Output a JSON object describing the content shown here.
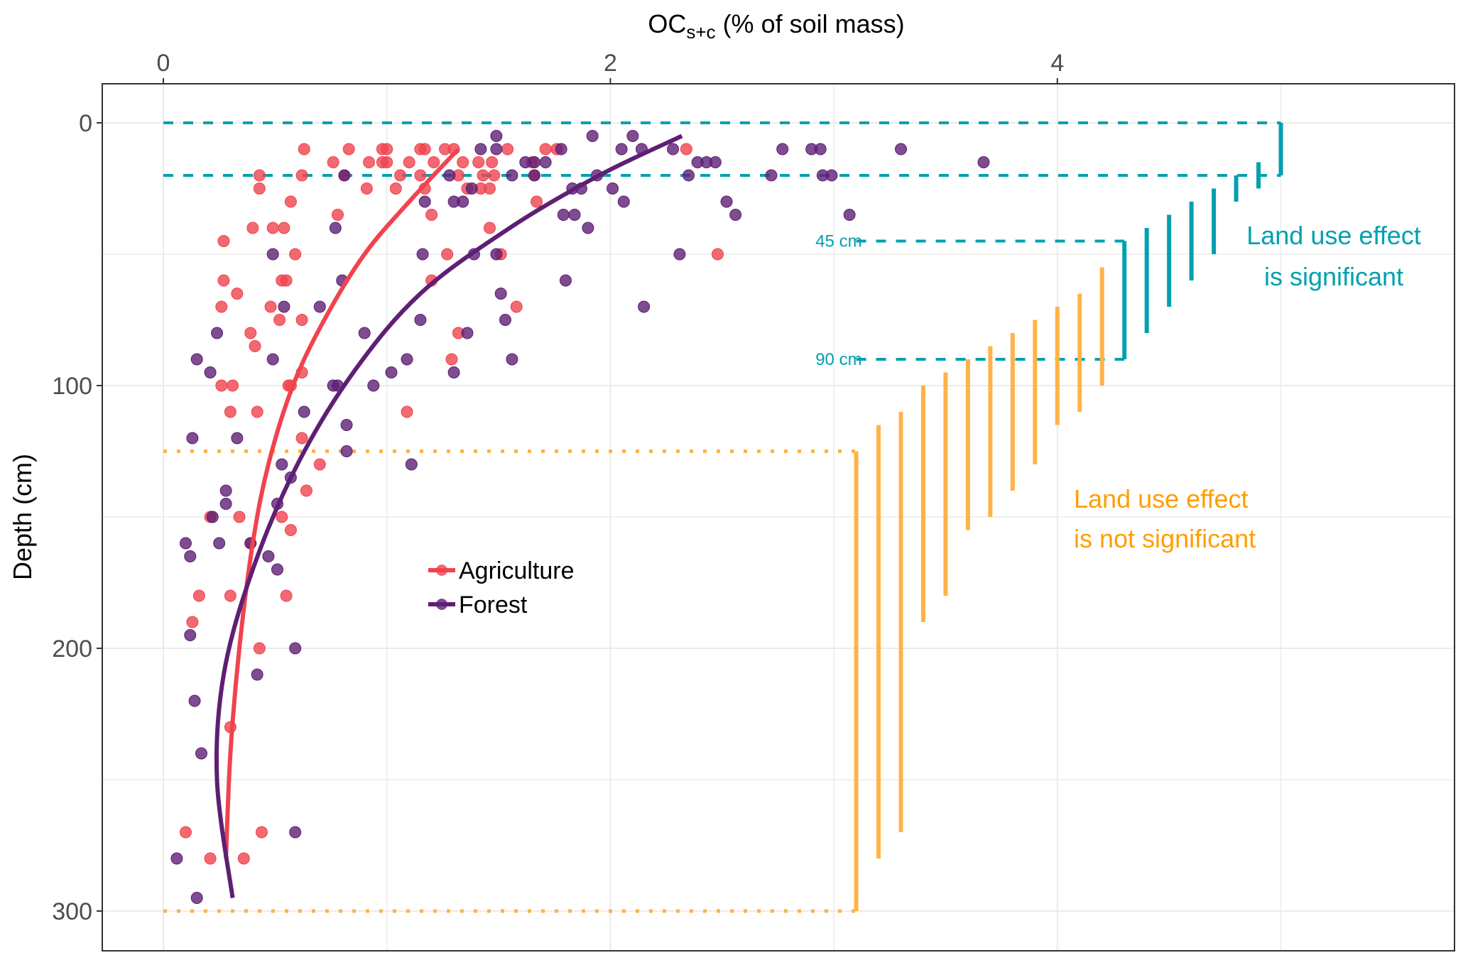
{
  "chart_data": {
    "type": "scatter",
    "title": "",
    "xlabel": {
      "main": "OC",
      "subscript": "s+c",
      "rest": " (% of soil mass)"
    },
    "ylabel": "Depth (cm)",
    "xlim": [
      -0.22,
      5.85
    ],
    "ylim": [
      -20,
      315
    ],
    "y_reversed": true,
    "x_axis_position": "top",
    "x_ticks": [
      0,
      2,
      4
    ],
    "x_tick_labels": [
      "0",
      "2",
      "4"
    ],
    "x_minor_grid": [
      1,
      3,
      5
    ],
    "y_ticks": [
      0,
      100,
      200,
      300
    ],
    "y_tick_labels": [
      "0",
      "100",
      "200",
      "300"
    ],
    "y_minor_grid": [
      50,
      150,
      250
    ],
    "grid": true,
    "colors": {
      "agriculture": "#F0434E",
      "forest": "#5E1F74",
      "significant": "#00A0B0",
      "not_significant": "#FFB347",
      "not_significant_text": "#FF9E00"
    },
    "legend": {
      "placement": "center-left",
      "entries": [
        {
          "label": "Agriculture",
          "series": "agriculture"
        },
        {
          "label": "Forest",
          "series": "forest"
        }
      ]
    },
    "series": [
      {
        "name": "Agriculture",
        "key": "agriculture",
        "points": [
          [
            0.63,
            10
          ],
          [
            0.83,
            10
          ],
          [
            0.98,
            10
          ],
          [
            1.0,
            10
          ],
          [
            1.15,
            10
          ],
          [
            1.17,
            10
          ],
          [
            1.26,
            10
          ],
          [
            1.3,
            10
          ],
          [
            1.54,
            10
          ],
          [
            1.71,
            10
          ],
          [
            1.76,
            10
          ],
          [
            2.34,
            10
          ],
          [
            0.76,
            15
          ],
          [
            0.92,
            15
          ],
          [
            0.98,
            15
          ],
          [
            1.0,
            15
          ],
          [
            1.1,
            15
          ],
          [
            1.21,
            15
          ],
          [
            1.34,
            15
          ],
          [
            1.41,
            15
          ],
          [
            1.47,
            15
          ],
          [
            1.65,
            15
          ],
          [
            0.43,
            20
          ],
          [
            0.62,
            20
          ],
          [
            0.81,
            20
          ],
          [
            1.06,
            20
          ],
          [
            1.15,
            20
          ],
          [
            1.32,
            20
          ],
          [
            1.43,
            20
          ],
          [
            1.48,
            20
          ],
          [
            1.66,
            20
          ],
          [
            0.43,
            25
          ],
          [
            0.91,
            25
          ],
          [
            1.04,
            25
          ],
          [
            1.17,
            25
          ],
          [
            1.36,
            25
          ],
          [
            1.42,
            25
          ],
          [
            1.46,
            25
          ],
          [
            0.57,
            30
          ],
          [
            1.67,
            30
          ],
          [
            0.78,
            35
          ],
          [
            1.2,
            35
          ],
          [
            0.4,
            40
          ],
          [
            0.49,
            40
          ],
          [
            0.54,
            40
          ],
          [
            1.46,
            40
          ],
          [
            0.27,
            45
          ],
          [
            0.59,
            50
          ],
          [
            1.27,
            50
          ],
          [
            1.51,
            50
          ],
          [
            2.48,
            50
          ],
          [
            0.27,
            60
          ],
          [
            0.53,
            60
          ],
          [
            0.55,
            60
          ],
          [
            1.2,
            60
          ],
          [
            0.33,
            65
          ],
          [
            0.26,
            70
          ],
          [
            0.48,
            70
          ],
          [
            1.58,
            70
          ],
          [
            0.52,
            75
          ],
          [
            0.62,
            75
          ],
          [
            0.39,
            80
          ],
          [
            1.32,
            80
          ],
          [
            0.41,
            85
          ],
          [
            1.29,
            90
          ],
          [
            0.62,
            95
          ],
          [
            0.26,
            100
          ],
          [
            0.31,
            100
          ],
          [
            0.56,
            100
          ],
          [
            0.57,
            100
          ],
          [
            0.3,
            110
          ],
          [
            0.42,
            110
          ],
          [
            1.09,
            110
          ],
          [
            0.62,
            120
          ],
          [
            0.7,
            130
          ],
          [
            0.64,
            140
          ],
          [
            0.21,
            150
          ],
          [
            0.34,
            150
          ],
          [
            0.53,
            150
          ],
          [
            0.57,
            155
          ],
          [
            0.39,
            160
          ],
          [
            0.16,
            180
          ],
          [
            0.3,
            180
          ],
          [
            0.55,
            180
          ],
          [
            0.13,
            190
          ],
          [
            0.43,
            200
          ],
          [
            0.3,
            230
          ],
          [
            0.1,
            270
          ],
          [
            0.44,
            270
          ],
          [
            0.21,
            280
          ],
          [
            0.36,
            280
          ]
        ],
        "fit": [
          [
            1.32,
            10
          ],
          [
            1.1,
            30
          ],
          [
            0.9,
            50
          ],
          [
            0.72,
            75
          ],
          [
            0.58,
            100
          ],
          [
            0.47,
            130
          ],
          [
            0.4,
            160
          ],
          [
            0.34,
            200
          ],
          [
            0.3,
            240
          ],
          [
            0.28,
            280
          ]
        ]
      },
      {
        "name": "Forest",
        "key": "forest",
        "points": [
          [
            1.49,
            5
          ],
          [
            1.92,
            5
          ],
          [
            2.1,
            5
          ],
          [
            1.42,
            10
          ],
          [
            1.49,
            10
          ],
          [
            1.78,
            10
          ],
          [
            2.05,
            10
          ],
          [
            2.14,
            10
          ],
          [
            2.28,
            10
          ],
          [
            2.77,
            10
          ],
          [
            2.9,
            10
          ],
          [
            2.94,
            10
          ],
          [
            3.3,
            10
          ],
          [
            1.62,
            15
          ],
          [
            1.66,
            15
          ],
          [
            1.71,
            15
          ],
          [
            2.39,
            15
          ],
          [
            2.43,
            15
          ],
          [
            2.47,
            15
          ],
          [
            3.67,
            15
          ],
          [
            0.81,
            20
          ],
          [
            1.28,
            20
          ],
          [
            1.56,
            20
          ],
          [
            1.66,
            20
          ],
          [
            1.94,
            20
          ],
          [
            2.35,
            20
          ],
          [
            2.72,
            20
          ],
          [
            2.95,
            20
          ],
          [
            2.99,
            20
          ],
          [
            1.38,
            25
          ],
          [
            1.83,
            25
          ],
          [
            1.87,
            25
          ],
          [
            2.01,
            25
          ],
          [
            1.17,
            30
          ],
          [
            1.3,
            30
          ],
          [
            1.34,
            30
          ],
          [
            2.06,
            30
          ],
          [
            2.52,
            30
          ],
          [
            1.79,
            35
          ],
          [
            1.84,
            35
          ],
          [
            2.56,
            35
          ],
          [
            3.07,
            35
          ],
          [
            0.77,
            40
          ],
          [
            1.9,
            40
          ],
          [
            0.49,
            50
          ],
          [
            1.16,
            50
          ],
          [
            1.39,
            50
          ],
          [
            1.49,
            50
          ],
          [
            2.31,
            50
          ],
          [
            0.8,
            60
          ],
          [
            1.8,
            60
          ],
          [
            1.51,
            65
          ],
          [
            0.54,
            70
          ],
          [
            0.7,
            70
          ],
          [
            2.15,
            70
          ],
          [
            1.15,
            75
          ],
          [
            1.53,
            75
          ],
          [
            0.24,
            80
          ],
          [
            0.9,
            80
          ],
          [
            1.36,
            80
          ],
          [
            0.15,
            90
          ],
          [
            0.49,
            90
          ],
          [
            1.09,
            90
          ],
          [
            1.56,
            90
          ],
          [
            0.21,
            95
          ],
          [
            1.3,
            95
          ],
          [
            1.02,
            95
          ],
          [
            0.76,
            100
          ],
          [
            0.78,
            100
          ],
          [
            0.94,
            100
          ],
          [
            0.63,
            110
          ],
          [
            0.82,
            115
          ],
          [
            0.13,
            120
          ],
          [
            0.33,
            120
          ],
          [
            0.82,
            125
          ],
          [
            0.53,
            130
          ],
          [
            1.11,
            130
          ],
          [
            0.57,
            135
          ],
          [
            0.28,
            140
          ],
          [
            0.28,
            145
          ],
          [
            0.51,
            145
          ],
          [
            0.22,
            150
          ],
          [
            0.1,
            160
          ],
          [
            0.25,
            160
          ],
          [
            0.39,
            160
          ],
          [
            0.12,
            165
          ],
          [
            0.47,
            165
          ],
          [
            0.51,
            170
          ],
          [
            0.12,
            195
          ],
          [
            0.59,
            200
          ],
          [
            0.42,
            210
          ],
          [
            0.14,
            220
          ],
          [
            0.17,
            240
          ],
          [
            0.59,
            270
          ],
          [
            0.06,
            280
          ],
          [
            0.15,
            295
          ]
        ],
        "fit": [
          [
            2.32,
            5
          ],
          [
            1.95,
            20
          ],
          [
            1.55,
            40
          ],
          [
            1.15,
            65
          ],
          [
            0.85,
            95
          ],
          [
            0.6,
            130
          ],
          [
            0.4,
            170
          ],
          [
            0.27,
            210
          ],
          [
            0.24,
            250
          ],
          [
            0.31,
            295
          ]
        ]
      }
    ],
    "reference_lines": [
      {
        "type": "dashed",
        "color_key": "significant",
        "depth": 0,
        "x_from": 0,
        "x_to": 5.0
      },
      {
        "type": "dashed",
        "color_key": "significant",
        "depth": 20,
        "x_from": 0,
        "x_to": 5.0
      },
      {
        "type": "dashed",
        "color_key": "significant",
        "depth": 45,
        "x_from": 3.1,
        "x_to": 4.3,
        "label": "45 cm"
      },
      {
        "type": "dashed",
        "color_key": "significant",
        "depth": 90,
        "x_from": 3.1,
        "x_to": 4.3,
        "label": "90 cm"
      },
      {
        "type": "dotted",
        "color_key": "not_significant",
        "depth": 125,
        "x_from": 0,
        "x_to": 3.1
      },
      {
        "type": "dotted",
        "color_key": "not_significant",
        "depth": 300,
        "x_from": 0,
        "x_to": 3.1
      }
    ],
    "depth_intervals": [
      {
        "x": 5.0,
        "top": 0,
        "bottom": 20,
        "significant": true
      },
      {
        "x": 4.9,
        "top": 15,
        "bottom": 25,
        "significant": true
      },
      {
        "x": 4.8,
        "top": 20,
        "bottom": 30,
        "significant": true
      },
      {
        "x": 4.7,
        "top": 25,
        "bottom": 50,
        "significant": true
      },
      {
        "x": 4.6,
        "top": 30,
        "bottom": 60,
        "significant": true
      },
      {
        "x": 4.5,
        "top": 35,
        "bottom": 70,
        "significant": true
      },
      {
        "x": 4.4,
        "top": 40,
        "bottom": 80,
        "significant": true
      },
      {
        "x": 4.3,
        "top": 45,
        "bottom": 90,
        "significant": true
      },
      {
        "x": 4.2,
        "top": 55,
        "bottom": 100,
        "significant": false
      },
      {
        "x": 4.1,
        "top": 65,
        "bottom": 110,
        "significant": false
      },
      {
        "x": 4.0,
        "top": 70,
        "bottom": 115,
        "significant": false
      },
      {
        "x": 3.9,
        "top": 75,
        "bottom": 130,
        "significant": false
      },
      {
        "x": 3.8,
        "top": 80,
        "bottom": 140,
        "significant": false
      },
      {
        "x": 3.7,
        "top": 85,
        "bottom": 150,
        "significant": false
      },
      {
        "x": 3.6,
        "top": 90,
        "bottom": 155,
        "significant": false
      },
      {
        "x": 3.5,
        "top": 95,
        "bottom": 180,
        "significant": false
      },
      {
        "x": 3.4,
        "top": 100,
        "bottom": 190,
        "significant": false
      },
      {
        "x": 3.3,
        "top": 110,
        "bottom": 270,
        "significant": false
      },
      {
        "x": 3.2,
        "top": 115,
        "bottom": 280,
        "significant": false
      },
      {
        "x": 3.1,
        "top": 125,
        "bottom": 300,
        "significant": false
      }
    ],
    "annotations": [
      {
        "key": "significant",
        "lines": [
          "Land use effect",
          "is significant"
        ],
        "color_key": "significant"
      },
      {
        "key": "not_significant",
        "lines": [
          "Land use effect",
          "is not significant"
        ],
        "color_key": "not_significant_text"
      }
    ]
  }
}
